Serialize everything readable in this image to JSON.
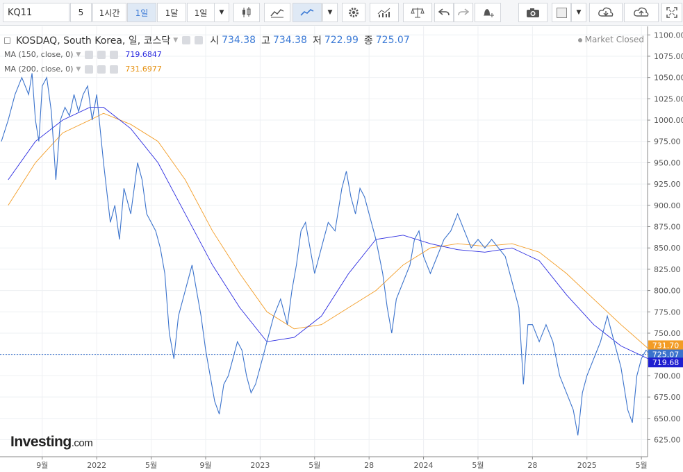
{
  "toolbar": {
    "symbol": "KQ11",
    "interval_value": "5",
    "btn_1h": "1시간",
    "btn_1d": "1일",
    "btn_1mo": "1달",
    "btn_1d_alt": "1일"
  },
  "legend": {
    "title": "KOSDAQ, South Korea, 일, 코스닥",
    "open_label": "시",
    "open": "734.38",
    "high_label": "고",
    "high": "734.38",
    "low_label": "저",
    "low": "722.99",
    "close_label": "종",
    "close": "725.07",
    "ma150_label": "MA (150, close, 0)",
    "ma150_value": "719.6847",
    "ma200_label": "MA (200, close, 0)",
    "ma200_value": "731.6977"
  },
  "status": "Market Closed",
  "logo": {
    "main": "Investing",
    "suffix": ".com"
  },
  "colors": {
    "price": "#3b73cc",
    "ma150": "#2a2ae0",
    "ma200": "#f39c25",
    "grid": "#eef0f3",
    "axis": "#555"
  },
  "chart_data": {
    "type": "line",
    "xlabel": "",
    "ylabel": "",
    "ylim": [
      605,
      1110
    ],
    "y_ticks": [
      625,
      650,
      675,
      700,
      725,
      750,
      775,
      800,
      825,
      850,
      875,
      900,
      925,
      950,
      975,
      1000,
      1025,
      1050,
      1075,
      1100
    ],
    "y_tick_labels": [
      "625.00",
      "650.00",
      "675.00",
      "700.00",
      "725.00",
      "750.00",
      "775.00",
      "800.00",
      "825.00",
      "850.00",
      "875.00",
      "900.00",
      "925.00",
      "950.00",
      "975.00",
      "1000.00",
      "1025.00",
      "1050.00",
      "1075.00",
      "1100.00"
    ],
    "x_tick_labels": [
      "9월",
      "2022",
      "5월",
      "9월",
      "2023",
      "5월",
      "28",
      "2024",
      "5월",
      "28",
      "2025",
      "5월"
    ],
    "x_tick_dates": [
      "2021-09",
      "2022-01",
      "2022-05",
      "2022-09",
      "2023-01",
      "2023-05",
      "2023-09",
      "2024-01",
      "2024-05",
      "2024-09",
      "2025-01",
      "2025-05"
    ],
    "last_price_labels": {
      "ma200": "731.70",
      "close": "725.07",
      "ma150": "719.68"
    },
    "series": [
      {
        "name": "KOSDAQ",
        "points": [
          [
            "2021-06",
            975
          ],
          [
            "2021-06",
            1000
          ],
          [
            "2021-07",
            1030
          ],
          [
            "2021-07",
            1050
          ],
          [
            "2021-08",
            1030
          ],
          [
            "2021-08",
            1055
          ],
          [
            "2021-08",
            1000
          ],
          [
            "2021-08",
            975
          ],
          [
            "2021-09",
            1040
          ],
          [
            "2021-09",
            1050
          ],
          [
            "2021-09",
            1010
          ],
          [
            "2021-10",
            930
          ],
          [
            "2021-10",
            1000
          ],
          [
            "2021-10",
            1015
          ],
          [
            "2021-11",
            1005
          ],
          [
            "2021-11",
            1030
          ],
          [
            "2021-11",
            1010
          ],
          [
            "2021-12",
            1030
          ],
          [
            "2021-12",
            1040
          ],
          [
            "2021-12",
            1000
          ],
          [
            "2022-01",
            1030
          ],
          [
            "2022-01",
            950
          ],
          [
            "2022-02",
            880
          ],
          [
            "2022-02",
            900
          ],
          [
            "2022-02",
            860
          ],
          [
            "2022-03",
            920
          ],
          [
            "2022-03",
            890
          ],
          [
            "2022-04",
            950
          ],
          [
            "2022-04",
            930
          ],
          [
            "2022-04",
            890
          ],
          [
            "2022-05",
            880
          ],
          [
            "2022-05",
            870
          ],
          [
            "2022-05",
            850
          ],
          [
            "2022-06",
            820
          ],
          [
            "2022-06",
            750
          ],
          [
            "2022-06",
            720
          ],
          [
            "2022-07",
            770
          ],
          [
            "2022-07",
            800
          ],
          [
            "2022-08",
            830
          ],
          [
            "2022-08",
            800
          ],
          [
            "2022-08",
            770
          ],
          [
            "2022-09",
            730
          ],
          [
            "2022-09",
            700
          ],
          [
            "2022-09",
            670
          ],
          [
            "2022-10",
            655
          ],
          [
            "2022-10",
            690
          ],
          [
            "2022-10",
            700
          ],
          [
            "2022-11",
            720
          ],
          [
            "2022-11",
            740
          ],
          [
            "2022-11",
            730
          ],
          [
            "2022-12",
            700
          ],
          [
            "2022-12",
            680
          ],
          [
            "2022-12",
            690
          ],
          [
            "2023-01",
            710
          ],
          [
            "2023-01",
            740
          ],
          [
            "2023-02",
            770
          ],
          [
            "2023-02",
            790
          ],
          [
            "2023-03",
            760
          ],
          [
            "2023-03",
            800
          ],
          [
            "2023-03",
            830
          ],
          [
            "2023-04",
            870
          ],
          [
            "2023-04",
            880
          ],
          [
            "2023-04",
            850
          ],
          [
            "2023-05",
            820
          ],
          [
            "2023-05",
            840
          ],
          [
            "2023-05",
            860
          ],
          [
            "2023-06",
            880
          ],
          [
            "2023-06",
            870
          ],
          [
            "2023-07",
            920
          ],
          [
            "2023-07",
            940
          ],
          [
            "2023-07",
            910
          ],
          [
            "2023-08",
            890
          ],
          [
            "2023-08",
            920
          ],
          [
            "2023-08",
            910
          ],
          [
            "2023-09",
            890
          ],
          [
            "2023-09",
            860
          ],
          [
            "2023-10",
            820
          ],
          [
            "2023-10",
            780
          ],
          [
            "2023-10",
            750
          ],
          [
            "2023-11",
            790
          ],
          [
            "2023-11",
            810
          ],
          [
            "2023-12",
            830
          ],
          [
            "2023-12",
            860
          ],
          [
            "2023-12",
            870
          ],
          [
            "2024-01",
            840
          ],
          [
            "2024-01",
            820
          ],
          [
            "2024-02",
            840
          ],
          [
            "2024-02",
            860
          ],
          [
            "2024-03",
            870
          ],
          [
            "2024-03",
            890
          ],
          [
            "2024-04",
            870
          ],
          [
            "2024-04",
            850
          ],
          [
            "2024-05",
            860
          ],
          [
            "2024-05",
            850
          ],
          [
            "2024-06",
            860
          ],
          [
            "2024-06",
            850
          ],
          [
            "2024-07",
            840
          ],
          [
            "2024-07",
            810
          ],
          [
            "2024-08",
            780
          ],
          [
            "2024-08",
            690
          ],
          [
            "2024-08",
            760
          ],
          [
            "2024-09",
            760
          ],
          [
            "2024-09",
            740
          ],
          [
            "2024-10",
            760
          ],
          [
            "2024-10",
            740
          ],
          [
            "2024-11",
            700
          ],
          [
            "2024-11",
            680
          ],
          [
            "2024-12",
            660
          ],
          [
            "2024-12",
            630
          ],
          [
            "2024-12",
            680
          ],
          [
            "2025-01",
            700
          ],
          [
            "2025-01",
            720
          ],
          [
            "2025-02",
            740
          ],
          [
            "2025-02",
            770
          ],
          [
            "2025-03",
            740
          ],
          [
            "2025-03",
            710
          ],
          [
            "2025-04",
            660
          ],
          [
            "2025-04",
            645
          ],
          [
            "2025-04",
            700
          ],
          [
            "2025-05",
            720
          ],
          [
            "2025-05",
            730
          ],
          [
            "2025-05",
            725
          ]
        ]
      },
      {
        "name": "MA (150, close, 0)",
        "points": [
          [
            "2021-06",
            930
          ],
          [
            "2021-08",
            975
          ],
          [
            "2021-10",
            1000
          ],
          [
            "2021-12",
            1015
          ],
          [
            "2022-01",
            1015
          ],
          [
            "2022-03",
            990
          ],
          [
            "2022-05",
            950
          ],
          [
            "2022-07",
            890
          ],
          [
            "2022-09",
            830
          ],
          [
            "2022-11",
            780
          ],
          [
            "2023-01",
            740
          ],
          [
            "2023-03",
            745
          ],
          [
            "2023-05",
            770
          ],
          [
            "2023-07",
            820
          ],
          [
            "2023-09",
            860
          ],
          [
            "2023-11",
            865
          ],
          [
            "2024-01",
            855
          ],
          [
            "2024-03",
            848
          ],
          [
            "2024-05",
            845
          ],
          [
            "2024-07",
            850
          ],
          [
            "2024-09",
            835
          ],
          [
            "2024-11",
            795
          ],
          [
            "2025-01",
            760
          ],
          [
            "2025-03",
            735
          ],
          [
            "2025-05",
            720
          ]
        ]
      },
      {
        "name": "MA (200, close, 0)",
        "points": [
          [
            "2021-06",
            900
          ],
          [
            "2021-08",
            950
          ],
          [
            "2021-10",
            985
          ],
          [
            "2021-12",
            1000
          ],
          [
            "2022-01",
            1008
          ],
          [
            "2022-03",
            995
          ],
          [
            "2022-05",
            975
          ],
          [
            "2022-07",
            930
          ],
          [
            "2022-09",
            870
          ],
          [
            "2022-11",
            820
          ],
          [
            "2023-01",
            775
          ],
          [
            "2023-03",
            755
          ],
          [
            "2023-05",
            760
          ],
          [
            "2023-07",
            780
          ],
          [
            "2023-09",
            800
          ],
          [
            "2023-11",
            830
          ],
          [
            "2024-01",
            850
          ],
          [
            "2024-03",
            855
          ],
          [
            "2024-05",
            852
          ],
          [
            "2024-07",
            855
          ],
          [
            "2024-09",
            845
          ],
          [
            "2024-11",
            820
          ],
          [
            "2025-01",
            790
          ],
          [
            "2025-03",
            760
          ],
          [
            "2025-05",
            732
          ]
        ]
      }
    ]
  }
}
